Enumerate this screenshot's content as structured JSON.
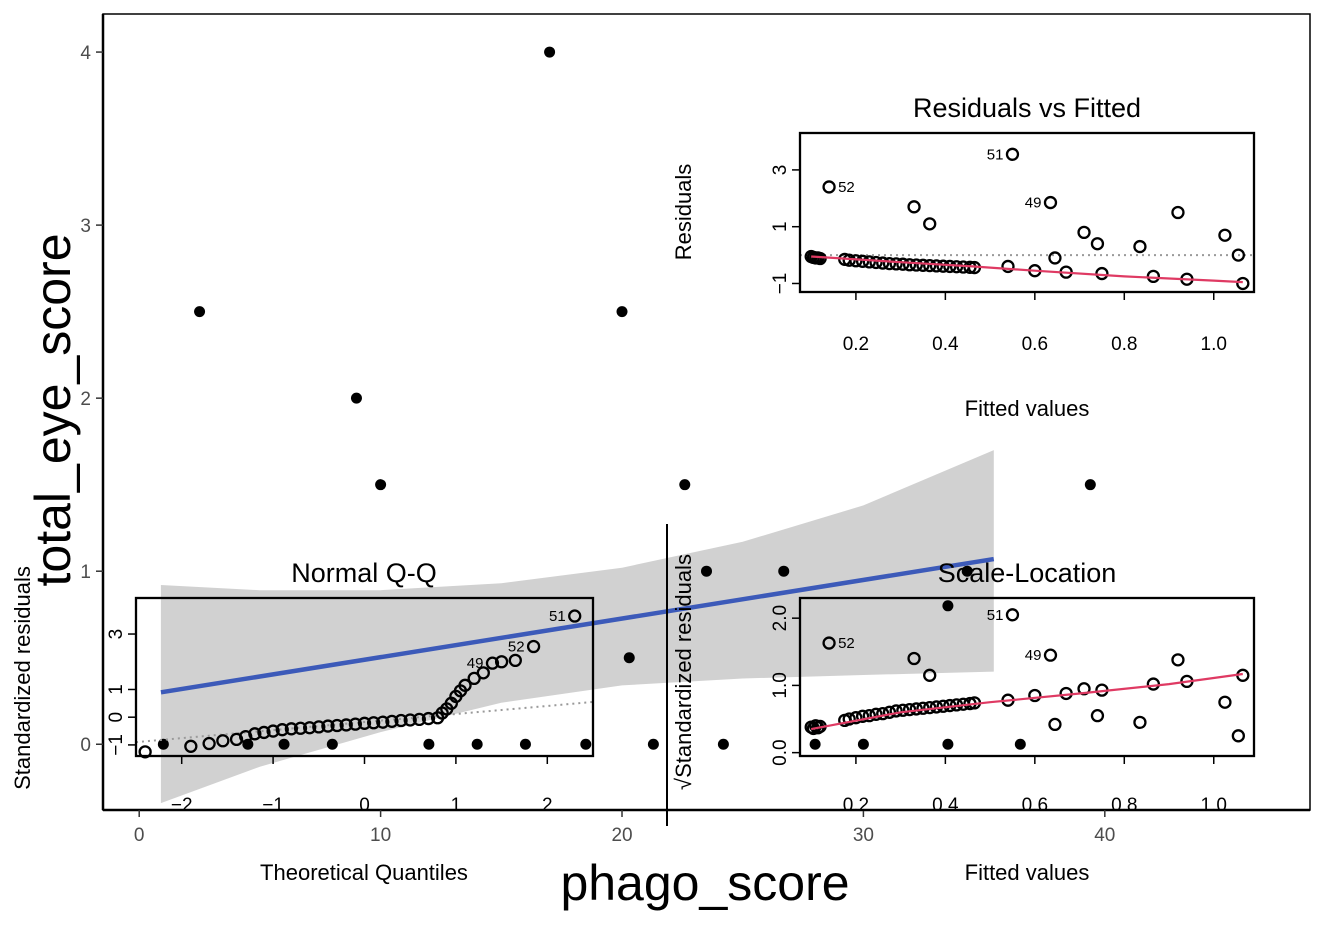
{
  "colors": {
    "main_points": "#000000",
    "fit_line": "#3c5ab9",
    "ci_band": "#bebebe",
    "lowess": "#df3a63",
    "reference": "#9a9a9a",
    "inset_points": "#000000"
  },
  "chart_data": [
    {
      "type": "scatter",
      "xlabel": "phago_score",
      "ylabel": "total_eye_score",
      "xlim": [
        -1.5,
        48.5
      ],
      "ylim": [
        -0.38,
        4.22
      ],
      "xticks": [
        0,
        10,
        20,
        30,
        40
      ],
      "yticks": [
        0,
        1,
        2,
        3,
        4
      ],
      "grid": false,
      "points": [
        {
          "x": 2.5,
          "y": 2.5
        },
        {
          "x": 9,
          "y": 2
        },
        {
          "x": 10,
          "y": 1.5
        },
        {
          "x": 17,
          "y": 4
        },
        {
          "x": 20,
          "y": 2.5
        },
        {
          "x": 20.3,
          "y": 0.5
        },
        {
          "x": 21.3,
          "y": 0
        },
        {
          "x": 22.6,
          "y": 1.5
        },
        {
          "x": 23.5,
          "y": 1
        },
        {
          "x": 24.2,
          "y": 0
        },
        {
          "x": 26.7,
          "y": 1
        },
        {
          "x": 33.5,
          "y": 0.8
        },
        {
          "x": 33.5,
          "y": 0
        },
        {
          "x": 39.4,
          "y": 1.5
        },
        {
          "x": 34.3,
          "y": 1
        },
        {
          "x": 1,
          "y": 0
        },
        {
          "x": 4.5,
          "y": 0
        },
        {
          "x": 6,
          "y": 0
        },
        {
          "x": 8,
          "y": 0
        },
        {
          "x": 12,
          "y": 0
        },
        {
          "x": 14,
          "y": 0
        },
        {
          "x": 16,
          "y": 0
        },
        {
          "x": 18.5,
          "y": 0
        },
        {
          "x": 28,
          "y": 0
        },
        {
          "x": 30,
          "y": 0
        },
        {
          "x": 36.5,
          "y": 0
        }
      ],
      "fit": {
        "x": [
          0.9,
          35.4
        ],
        "y": [
          0.3,
          1.07
        ]
      },
      "ci_band": {
        "x": [
          0.9,
          5,
          10,
          15,
          20,
          25,
          30,
          35.4
        ],
        "lower": [
          -0.34,
          -0.13,
          0.07,
          0.24,
          0.34,
          0.38,
          0.4,
          0.42
        ],
        "upper": [
          0.92,
          0.89,
          0.89,
          0.93,
          1.02,
          1.17,
          1.38,
          1.7
        ]
      }
    },
    {
      "type": "scatter",
      "title": "Residuals vs Fitted",
      "xlabel": "Fitted values",
      "ylabel": "Residuals",
      "xlim": [
        0.075,
        1.09
      ],
      "ylim": [
        -1.3,
        4.3
      ],
      "xticks": [
        "0.2",
        "0.4",
        "0.6",
        "0.8",
        "1.0"
      ],
      "yticks": [
        "-1",
        "1",
        "3"
      ],
      "labels": [
        "52",
        "51",
        "49"
      ],
      "points": [
        {
          "x": 0.14,
          "y": 2.4,
          "label": "52"
        },
        {
          "x": 0.55,
          "y": 3.55,
          "label": "51"
        },
        {
          "x": 0.635,
          "y": 1.85,
          "label": "49"
        },
        {
          "x": 0.33,
          "y": 1.7
        },
        {
          "x": 0.365,
          "y": 1.1
        },
        {
          "x": 0.71,
          "y": 0.8
        },
        {
          "x": 0.74,
          "y": 0.4
        },
        {
          "x": 0.835,
          "y": 0.3
        },
        {
          "x": 0.92,
          "y": 1.5
        },
        {
          "x": 1.025,
          "y": 0.7
        },
        {
          "x": 1.055,
          "y": 0.0
        },
        {
          "x": 0.645,
          "y": -0.1
        },
        {
          "x": 0.54,
          "y": -0.4
        },
        {
          "x": 0.6,
          "y": -0.55
        },
        {
          "x": 0.67,
          "y": -0.6
        },
        {
          "x": 0.75,
          "y": -0.65
        },
        {
          "x": 0.865,
          "y": -0.75
        },
        {
          "x": 0.94,
          "y": -0.85
        },
        {
          "x": 1.065,
          "y": -1.0
        },
        {
          "x": 0.1,
          "y": -0.05
        },
        {
          "x": 0.105,
          "y": -0.08
        },
        {
          "x": 0.11,
          "y": -0.1
        },
        {
          "x": 0.115,
          "y": -0.1
        },
        {
          "x": 0.12,
          "y": -0.12
        },
        {
          "x": 0.175,
          "y": -0.15
        },
        {
          "x": 0.185,
          "y": -0.18
        },
        {
          "x": 0.2,
          "y": -0.2
        },
        {
          "x": 0.215,
          "y": -0.22
        },
        {
          "x": 0.23,
          "y": -0.24
        },
        {
          "x": 0.245,
          "y": -0.26
        },
        {
          "x": 0.26,
          "y": -0.28
        },
        {
          "x": 0.275,
          "y": -0.3
        },
        {
          "x": 0.29,
          "y": -0.31
        },
        {
          "x": 0.305,
          "y": -0.32
        },
        {
          "x": 0.32,
          "y": -0.34
        },
        {
          "x": 0.335,
          "y": -0.35
        },
        {
          "x": 0.35,
          "y": -0.36
        },
        {
          "x": 0.365,
          "y": -0.37
        },
        {
          "x": 0.38,
          "y": -0.38
        },
        {
          "x": 0.395,
          "y": -0.39
        },
        {
          "x": 0.41,
          "y": -0.4
        },
        {
          "x": 0.425,
          "y": -0.41
        },
        {
          "x": 0.44,
          "y": -0.42
        },
        {
          "x": 0.455,
          "y": -0.43
        },
        {
          "x": 0.465,
          "y": -0.44
        }
      ],
      "smooth": {
        "x": [
          0.1,
          0.3,
          0.46,
          0.6,
          0.8,
          1.0,
          1.065
        ],
        "y": [
          -0.05,
          -0.25,
          -0.4,
          -0.55,
          -0.75,
          -0.9,
          -0.95
        ]
      }
    },
    {
      "type": "scatter",
      "title": "Normal Q-Q",
      "xlabel": "Theoretical Quantiles",
      "ylabel": "Standardized residuals",
      "xlim": [
        -2.5,
        2.5
      ],
      "ylim": [
        -1.4,
        4.3
      ],
      "xticks": [
        "-2",
        "-1",
        "0",
        "1",
        "2"
      ],
      "yticks": [
        "-1",
        "0",
        "1",
        "3"
      ],
      "labels": [
        "51",
        "52",
        "49"
      ],
      "points": [
        {
          "x": -2.4,
          "y": -1.25
        },
        {
          "x": -1.9,
          "y": -1.05
        },
        {
          "x": -1.7,
          "y": -0.95
        },
        {
          "x": -1.55,
          "y": -0.85
        },
        {
          "x": -1.4,
          "y": -0.8
        },
        {
          "x": -1.3,
          "y": -0.7
        },
        {
          "x": -1.2,
          "y": -0.6
        },
        {
          "x": -1.1,
          "y": -0.55
        },
        {
          "x": -1.0,
          "y": -0.5
        },
        {
          "x": -0.9,
          "y": -0.45
        },
        {
          "x": -0.8,
          "y": -0.42
        },
        {
          "x": -0.7,
          "y": -0.4
        },
        {
          "x": -0.6,
          "y": -0.38
        },
        {
          "x": -0.5,
          "y": -0.35
        },
        {
          "x": -0.4,
          "y": -0.32
        },
        {
          "x": -0.3,
          "y": -0.3
        },
        {
          "x": -0.2,
          "y": -0.28
        },
        {
          "x": -0.1,
          "y": -0.25
        },
        {
          "x": 0.0,
          "y": -0.22
        },
        {
          "x": 0.1,
          "y": -0.2
        },
        {
          "x": 0.2,
          "y": -0.18
        },
        {
          "x": 0.3,
          "y": -0.15
        },
        {
          "x": 0.4,
          "y": -0.12
        },
        {
          "x": 0.5,
          "y": -0.1
        },
        {
          "x": 0.6,
          "y": -0.08
        },
        {
          "x": 0.7,
          "y": -0.05
        },
        {
          "x": 0.8,
          "y": -0.02
        },
        {
          "x": 0.85,
          "y": 0.15
        },
        {
          "x": 0.9,
          "y": 0.3
        },
        {
          "x": 0.95,
          "y": 0.5
        },
        {
          "x": 1.0,
          "y": 0.75
        },
        {
          "x": 1.05,
          "y": 0.95
        },
        {
          "x": 1.1,
          "y": 1.15
        },
        {
          "x": 1.2,
          "y": 1.4
        },
        {
          "x": 1.3,
          "y": 1.6
        },
        {
          "x": 1.4,
          "y": 1.95,
          "label": "49"
        },
        {
          "x": 1.5,
          "y": 2.0
        },
        {
          "x": 1.65,
          "y": 2.05
        },
        {
          "x": 1.85,
          "y": 2.55,
          "label": "52"
        },
        {
          "x": 2.3,
          "y": 3.65,
          "label": "51"
        }
      ],
      "reference": {
        "x": [
          -2.5,
          2.5
        ],
        "y": [
          -0.9,
          0.55
        ]
      }
    },
    {
      "type": "scatter",
      "title": "Scale-Location",
      "xlabel": "Fitted values",
      "ylabel": "√Standardized residuals",
      "xlim": [
        0.075,
        1.09
      ],
      "ylim": [
        -0.05,
        2.3
      ],
      "xticks": [
        "0.2",
        "0.4",
        "0.6",
        "0.8",
        "1.0"
      ],
      "yticks": [
        "0.0",
        "1.0",
        "2.0"
      ],
      "labels": [
        "52",
        "51",
        "49"
      ],
      "points": [
        {
          "x": 0.14,
          "y": 1.63,
          "label": "52"
        },
        {
          "x": 0.55,
          "y": 2.05,
          "label": "51"
        },
        {
          "x": 0.635,
          "y": 1.45,
          "label": "49"
        },
        {
          "x": 0.33,
          "y": 1.4
        },
        {
          "x": 0.365,
          "y": 1.15
        },
        {
          "x": 0.54,
          "y": 0.78
        },
        {
          "x": 0.6,
          "y": 0.85
        },
        {
          "x": 0.67,
          "y": 0.88
        },
        {
          "x": 0.71,
          "y": 0.95
        },
        {
          "x": 0.75,
          "y": 0.93
        },
        {
          "x": 0.865,
          "y": 1.02
        },
        {
          "x": 0.92,
          "y": 1.38
        },
        {
          "x": 0.94,
          "y": 1.06
        },
        {
          "x": 1.025,
          "y": 0.75
        },
        {
          "x": 1.065,
          "y": 1.15
        },
        {
          "x": 0.645,
          "y": 0.42
        },
        {
          "x": 0.74,
          "y": 0.55
        },
        {
          "x": 0.835,
          "y": 0.45
        },
        {
          "x": 1.055,
          "y": 0.25
        },
        {
          "x": 0.1,
          "y": 0.38
        },
        {
          "x": 0.105,
          "y": 0.36
        },
        {
          "x": 0.11,
          "y": 0.4
        },
        {
          "x": 0.115,
          "y": 0.37
        },
        {
          "x": 0.12,
          "y": 0.39
        },
        {
          "x": 0.175,
          "y": 0.48
        },
        {
          "x": 0.185,
          "y": 0.5
        },
        {
          "x": 0.2,
          "y": 0.52
        },
        {
          "x": 0.215,
          "y": 0.54
        },
        {
          "x": 0.23,
          "y": 0.55
        },
        {
          "x": 0.245,
          "y": 0.57
        },
        {
          "x": 0.26,
          "y": 0.58
        },
        {
          "x": 0.275,
          "y": 0.6
        },
        {
          "x": 0.29,
          "y": 0.62
        },
        {
          "x": 0.305,
          "y": 0.63
        },
        {
          "x": 0.32,
          "y": 0.64
        },
        {
          "x": 0.335,
          "y": 0.65
        },
        {
          "x": 0.35,
          "y": 0.66
        },
        {
          "x": 0.365,
          "y": 0.67
        },
        {
          "x": 0.38,
          "y": 0.68
        },
        {
          "x": 0.395,
          "y": 0.69
        },
        {
          "x": 0.41,
          "y": 0.7
        },
        {
          "x": 0.425,
          "y": 0.71
        },
        {
          "x": 0.44,
          "y": 0.72
        },
        {
          "x": 0.455,
          "y": 0.73
        },
        {
          "x": 0.465,
          "y": 0.74
        }
      ],
      "smooth": {
        "x": [
          0.1,
          0.3,
          0.5,
          0.7,
          0.9,
          1.065
        ],
        "y": [
          0.35,
          0.6,
          0.75,
          0.88,
          1.02,
          1.17
        ]
      }
    }
  ]
}
